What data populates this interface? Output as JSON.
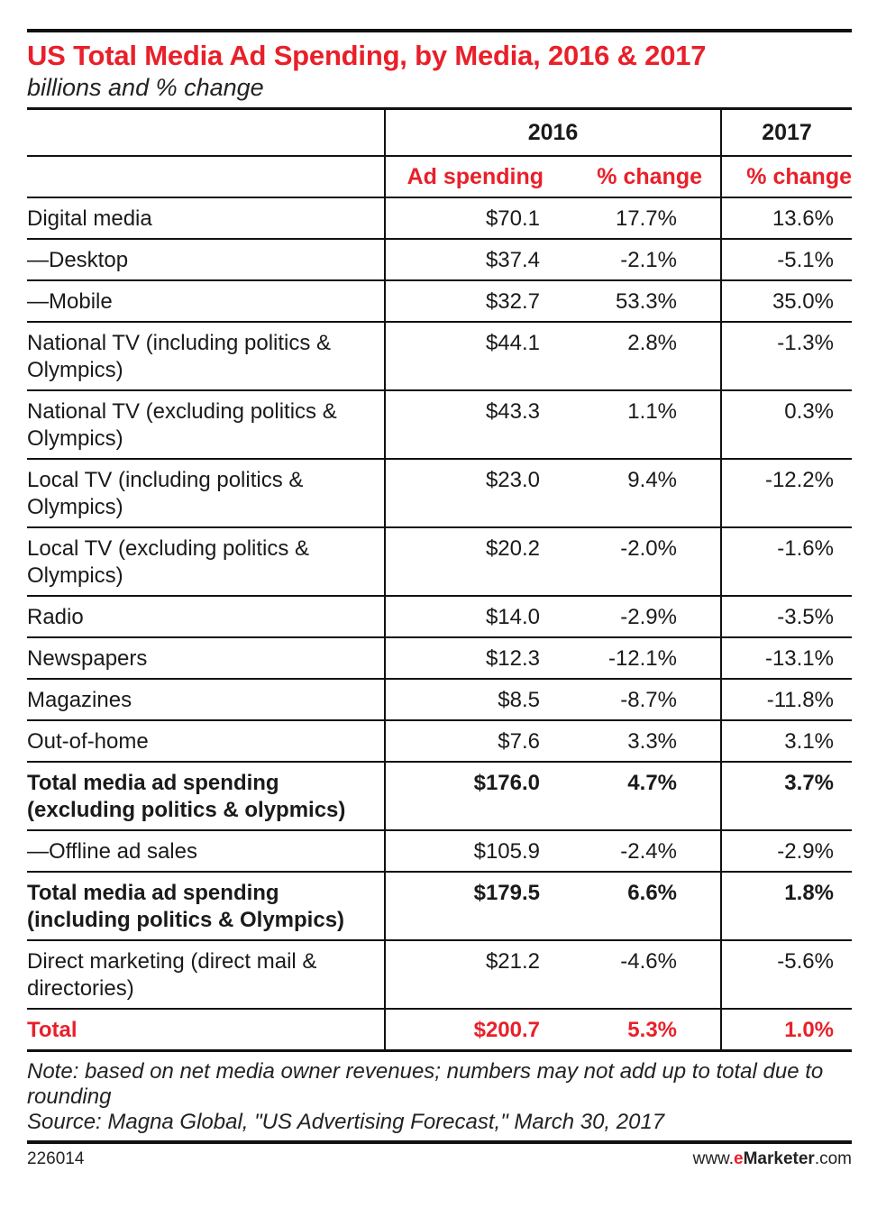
{
  "title": "US Total Media Ad Spending, by Media, 2016 & 2017",
  "subtitle": "billions and % change",
  "chart_data": {
    "type": "table",
    "title": "US Total Media Ad Spending, by Media, 2016 & 2017",
    "subtitle": "billions and % change",
    "year_headers": [
      "2016",
      "2017"
    ],
    "column_headers": [
      "Ad spending",
      "% change",
      "% change"
    ],
    "rows": [
      {
        "label": "Digital media",
        "spend_2016": "$70.1",
        "pct_2016": "17.7%",
        "pct_2017": "13.6%",
        "style": "normal"
      },
      {
        "label": "—Desktop",
        "spend_2016": "$37.4",
        "pct_2016": "-2.1%",
        "pct_2017": "-5.1%",
        "style": "normal"
      },
      {
        "label": "—Mobile",
        "spend_2016": "$32.7",
        "pct_2016": "53.3%",
        "pct_2017": "35.0%",
        "style": "normal"
      },
      {
        "label": "National TV (including politics & Olympics)",
        "spend_2016": "$44.1",
        "pct_2016": "2.8%",
        "pct_2017": "-1.3%",
        "style": "normal"
      },
      {
        "label": "National TV (excluding politics & Olympics)",
        "spend_2016": "$43.3",
        "pct_2016": "1.1%",
        "pct_2017": "0.3%",
        "style": "normal"
      },
      {
        "label": "Local TV (including politics & Olympics)",
        "spend_2016": "$23.0",
        "pct_2016": "9.4%",
        "pct_2017": "-12.2%",
        "style": "normal"
      },
      {
        "label": "Local TV (excluding politics & Olympics)",
        "spend_2016": "$20.2",
        "pct_2016": "-2.0%",
        "pct_2017": "-1.6%",
        "style": "normal"
      },
      {
        "label": "Radio",
        "spend_2016": "$14.0",
        "pct_2016": "-2.9%",
        "pct_2017": "-3.5%",
        "style": "normal"
      },
      {
        "label": "Newspapers",
        "spend_2016": "$12.3",
        "pct_2016": "-12.1%",
        "pct_2017": "-13.1%",
        "style": "normal"
      },
      {
        "label": "Magazines",
        "spend_2016": "$8.5",
        "pct_2016": "-8.7%",
        "pct_2017": "-11.8%",
        "style": "normal"
      },
      {
        "label": "Out-of-home",
        "spend_2016": "$7.6",
        "pct_2016": "3.3%",
        "pct_2017": "3.1%",
        "style": "normal"
      },
      {
        "label": "Total media ad spending (excluding politics & olypmics)",
        "spend_2016": "$176.0",
        "pct_2016": "4.7%",
        "pct_2017": "3.7%",
        "style": "bold"
      },
      {
        "label": "—Offline ad sales",
        "spend_2016": "$105.9",
        "pct_2016": "-2.4%",
        "pct_2017": "-2.9%",
        "style": "normal"
      },
      {
        "label": "Total media ad spending (including politics & Olympics)",
        "spend_2016": "$179.5",
        "pct_2016": "6.6%",
        "pct_2017": "1.8%",
        "style": "bold"
      },
      {
        "label": "Direct marketing (direct mail & directories)",
        "spend_2016": "$21.2",
        "pct_2016": "-4.6%",
        "pct_2017": "-5.6%",
        "style": "normal"
      },
      {
        "label": "Total",
        "spend_2016": "$200.7",
        "pct_2016": "5.3%",
        "pct_2017": "1.0%",
        "style": "total"
      }
    ]
  },
  "note": "Note: based on net media owner revenues; numbers may not add up to total due to rounding",
  "source": "Source: Magna Global, \"US Advertising Forecast,\" March 30, 2017",
  "footer": {
    "chart_id": "226014",
    "site_prefix": "www.",
    "site_brand_e": "e",
    "site_brand_rest": "Marketer",
    "site_suffix": ".com"
  },
  "colors": {
    "accent": "#e8202a",
    "text": "#1a1a1a",
    "rule": "#111111"
  }
}
